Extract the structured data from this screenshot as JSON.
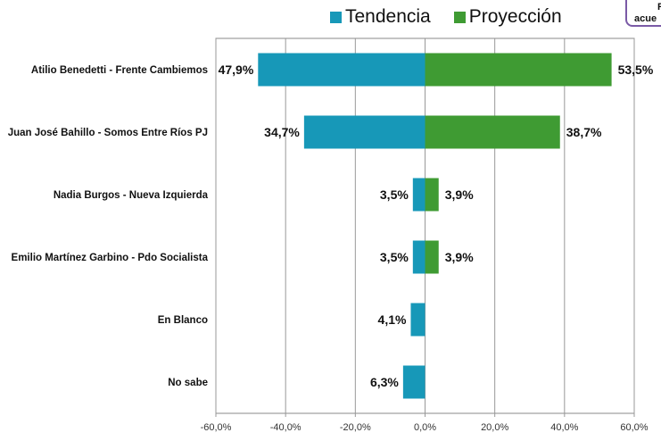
{
  "legend": {
    "items": [
      {
        "label": "Tendencia",
        "color": "#1798b8"
      },
      {
        "label": "Proyección",
        "color": "#3f9b33"
      }
    ]
  },
  "note_box": {
    "line1": "Ra",
    "line2": "acue",
    "border_color": "#7a5aa6"
  },
  "chart_data": {
    "type": "bar",
    "orientation": "horizontal",
    "categories": [
      "Atilio Benedetti - Frente Cambiemos",
      "Juan José Bahillo - Somos Entre Ríos PJ",
      "Nadia Burgos - Nueva Izquierda",
      "Emilio Martínez Garbino - Pdo Socialista",
      "En Blanco",
      "No sabe"
    ],
    "series": [
      {
        "name": "Tendencia",
        "color": "#1798b8",
        "values": [
          -47.9,
          -34.7,
          -3.5,
          -3.5,
          -4.1,
          -6.3
        ],
        "labels": [
          "47,9%",
          "34,7%",
          "3,5%",
          "3,5%",
          "4,1%",
          "6,3%"
        ]
      },
      {
        "name": "Proyección",
        "color": "#3f9b33",
        "values": [
          53.5,
          38.7,
          3.9,
          3.9,
          null,
          null
        ],
        "labels": [
          "53,5%",
          "38,7%",
          "3,9%",
          "3,9%",
          null,
          null
        ]
      }
    ],
    "xlim": [
      -60,
      60
    ],
    "xticks": [
      -60,
      -40,
      -20,
      0,
      20,
      40,
      60
    ],
    "xtick_labels": [
      "-60,0%",
      "-40,0%",
      "-20,0%",
      "0,0%",
      "20,0%",
      "40,0%",
      "60,0%"
    ],
    "grid": true,
    "legend_position": "top"
  }
}
